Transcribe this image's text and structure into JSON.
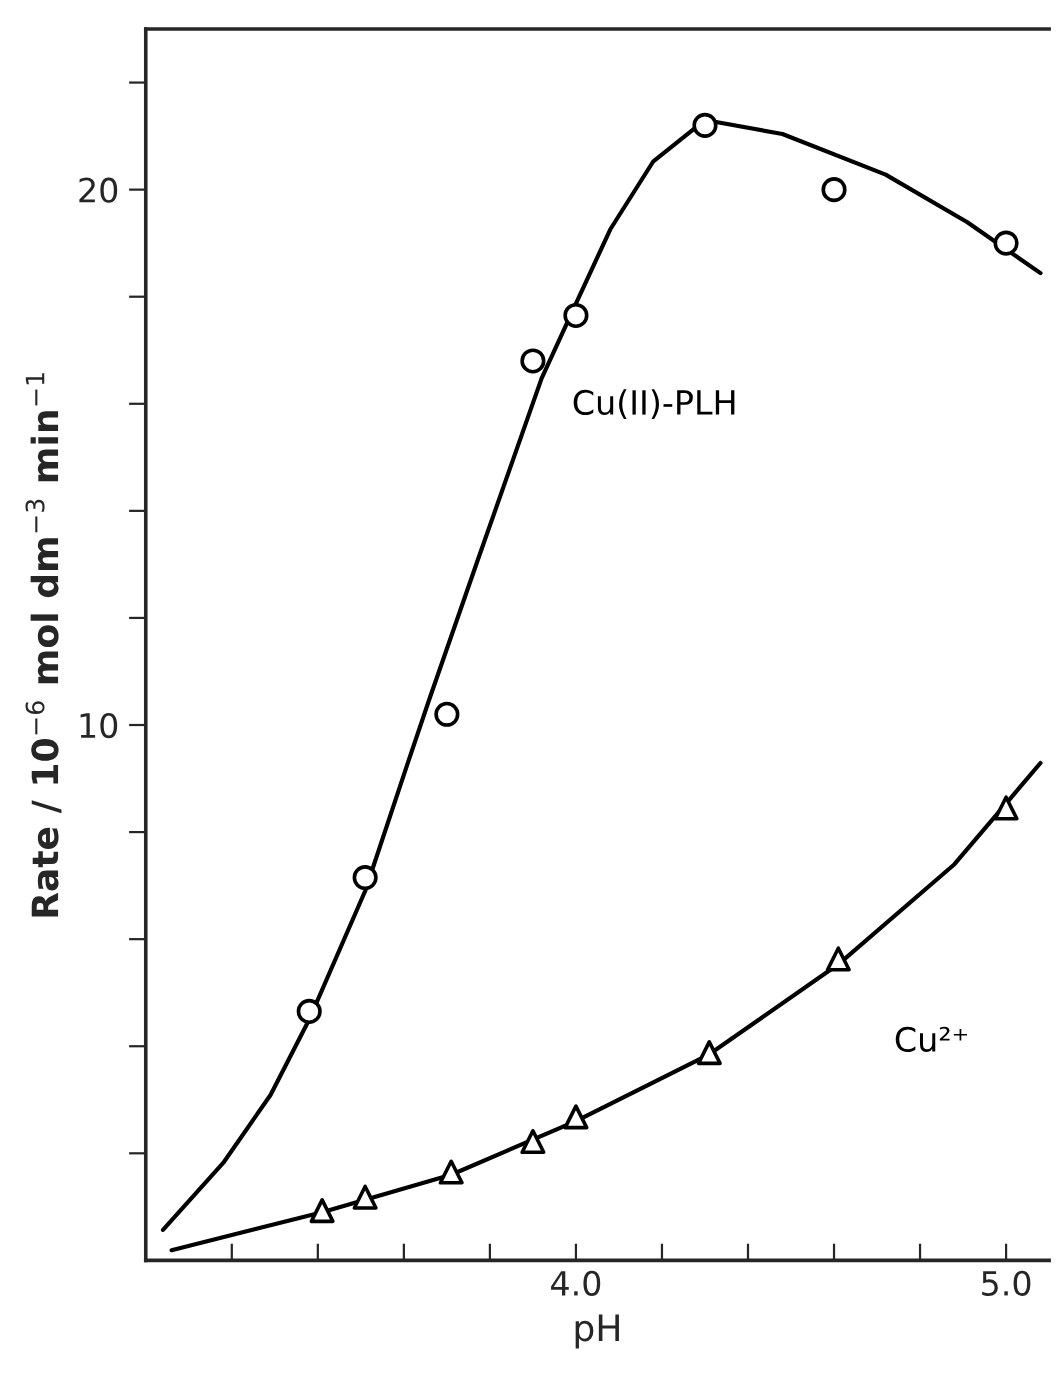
{
  "chart_data": {
    "type": "scatter",
    "xlabel": "pH",
    "ylabel": "Rate / 10$^{−6}$ mol dm$^{−3}$ min$^{−1}$",
    "xlim": [
      3.0,
      5.1
    ],
    "ylim": [
      0,
      23
    ],
    "xticks": [
      {
        "value": 3.2,
        "label": null
      },
      {
        "value": 3.4,
        "label": null
      },
      {
        "value": 3.6,
        "label": null
      },
      {
        "value": 3.8,
        "label": null
      },
      {
        "value": 4.0,
        "label": "4.0"
      },
      {
        "value": 4.2,
        "label": null
      },
      {
        "value": 4.4,
        "label": null
      },
      {
        "value": 4.6,
        "label": null
      },
      {
        "value": 4.8,
        "label": null
      },
      {
        "value": 5.0,
        "label": "5.0"
      }
    ],
    "yticks": [
      {
        "value": 2,
        "label": null
      },
      {
        "value": 4,
        "label": null
      },
      {
        "value": 6,
        "label": null
      },
      {
        "value": 8,
        "label": null
      },
      10,
      {
        "value": 12,
        "label": null
      },
      {
        "value": 14,
        "label": null
      },
      {
        "value": 16,
        "label": null
      },
      {
        "value": 18,
        "label": null
      },
      20,
      {
        "value": 22,
        "label": null
      }
    ],
    "grid": false,
    "legend": false,
    "series": [
      {
        "name": "Cu(II)-PLH",
        "marker": "circle",
        "color": "#000000",
        "x": [
          3.38,
          3.51,
          3.7,
          3.9,
          4.0,
          4.3,
          4.6,
          5.0
        ],
        "values": [
          4.65,
          7.15,
          10.2,
          16.8,
          17.65,
          21.2,
          20.0,
          19.0
        ]
      },
      {
        "name": "Cu²⁺",
        "marker": "triangle",
        "color": "#000000",
        "x": [
          3.41,
          3.51,
          3.71,
          3.9,
          4.0,
          4.31,
          4.61,
          5.0
        ],
        "values": [
          0.93,
          1.18,
          1.65,
          2.22,
          2.68,
          3.88,
          5.63,
          8.45
        ]
      },
      {
        "type": "line",
        "line_style": "solid",
        "color": "#000000",
        "x": [
          3.04,
          3.18,
          3.29,
          3.38,
          3.51,
          3.61,
          3.66,
          3.77,
          3.92,
          4.0,
          4.08,
          4.18,
          4.3,
          4.48,
          4.72,
          4.91,
          5.08
        ],
        "values": [
          0.57,
          1.82,
          3.09,
          4.5,
          6.9,
          9.31,
          10.5,
          13.04,
          16.47,
          17.87,
          19.26,
          20.53,
          21.3,
          21.04,
          20.28,
          19.39,
          18.44
        ]
      },
      {
        "type": "line",
        "line_style": "solid",
        "color": "#000000",
        "x": [
          3.06,
          3.41,
          3.71,
          4.0,
          4.31,
          4.61,
          4.88,
          5.08
        ],
        "values": [
          0.19,
          0.9,
          1.6,
          2.6,
          3.85,
          5.53,
          7.4,
          9.29
        ]
      }
    ]
  }
}
